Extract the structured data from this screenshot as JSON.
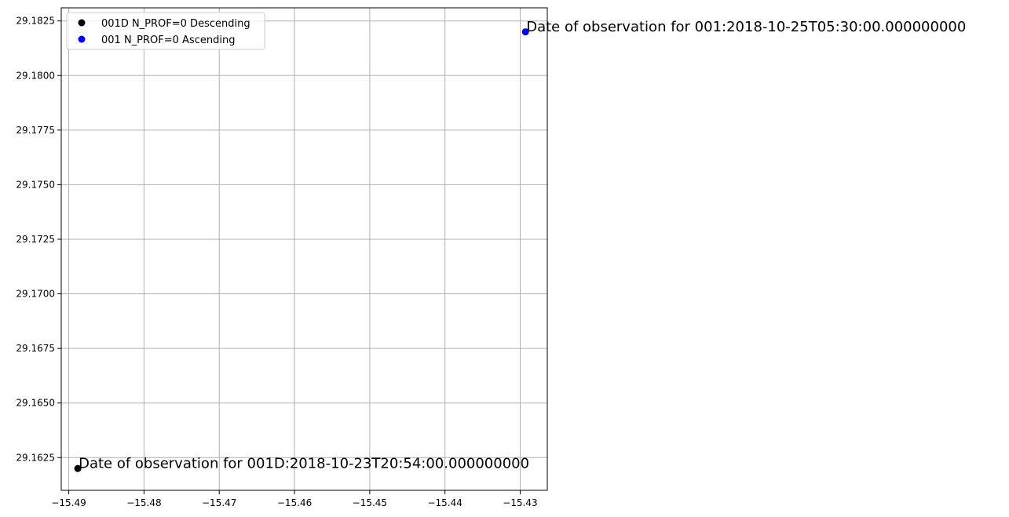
{
  "chart_data": {
    "type": "scatter",
    "title": "",
    "xlabel": "",
    "ylabel": "",
    "xlim": [
      -15.491,
      -15.4264
    ],
    "ylim": [
      29.161,
      29.1831
    ],
    "xticks": [
      -15.49,
      -15.48,
      -15.47,
      -15.46,
      -15.45,
      -15.44,
      -15.43
    ],
    "xtick_labels": [
      "−15.49",
      "−15.48",
      "−15.47",
      "−15.46",
      "−15.45",
      "−15.44",
      "−15.43"
    ],
    "yticks": [
      29.1625,
      29.165,
      29.1675,
      29.17,
      29.1725,
      29.175,
      29.1775,
      29.18,
      29.1825
    ],
    "ytick_labels": [
      "29.1625",
      "29.1650",
      "29.1675",
      "29.1700",
      "29.1725",
      "29.1750",
      "29.1775",
      "29.1800",
      "29.1825"
    ],
    "grid": true,
    "legend_position": "top-left",
    "series": [
      {
        "name": "001D N_PROF=0 Descending",
        "color": "#000000",
        "x": [
          -15.4888
        ],
        "y": [
          29.162
        ],
        "annotation": "Date of observation for 001D:2018-10-23T20:54:00.000000000"
      },
      {
        "name": "001 N_PROF=0 Ascending",
        "color": "#0000ff",
        "x": [
          -15.4293
        ],
        "y": [
          29.182
        ],
        "annotation": "Date of observation for 001:2018-10-25T05:30:00.000000000"
      }
    ]
  }
}
